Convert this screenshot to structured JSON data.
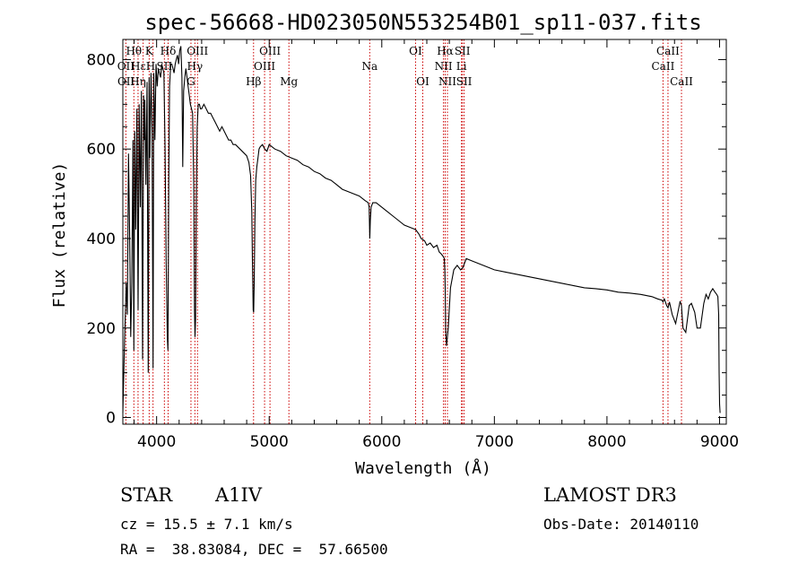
{
  "chart_data": {
    "type": "line",
    "title": "spec-56668-HD023050N553254B01_sp11-037.fits",
    "xlabel": "Wavelength (Å)",
    "ylabel": "Flux (relative)",
    "xlim": [
      3700,
      9060
    ],
    "ylim": [
      -15,
      845
    ],
    "x_ticks": [
      4000,
      5000,
      6000,
      7000,
      8000,
      9000
    ],
    "y_ticks": [
      0,
      200,
      400,
      600,
      800
    ],
    "series": [
      {
        "name": "flux",
        "x": [
          3700,
          3705,
          3715,
          3730,
          3740,
          3750,
          3760,
          3770,
          3780,
          3790,
          3798,
          3805,
          3815,
          3825,
          3835,
          3845,
          3855,
          3865,
          3875,
          3885,
          3890,
          3895,
          3905,
          3915,
          3925,
          3933,
          3940,
          3950,
          3960,
          3968,
          3975,
          3985,
          3995,
          4005,
          4015,
          4025,
          4035,
          4045,
          4055,
          4065,
          4075,
          4085,
          4095,
          4101,
          4108,
          4115,
          4125,
          4135,
          4145,
          4155,
          4165,
          4175,
          4185,
          4195,
          4205,
          4215,
          4225,
          4232,
          4240,
          4250,
          4260,
          4270,
          4280,
          4290,
          4300,
          4310,
          4320,
          4330,
          4336,
          4341,
          4346,
          4352,
          4360,
          4370,
          4380,
          4390,
          4400,
          4420,
          4440,
          4460,
          4480,
          4500,
          4520,
          4540,
          4560,
          4580,
          4600,
          4620,
          4640,
          4660,
          4680,
          4700,
          4720,
          4740,
          4760,
          4780,
          4800,
          4820,
          4835,
          4845,
          4852,
          4858,
          4862,
          4867,
          4873,
          4880,
          4890,
          4900,
          4910,
          4920,
          4940,
          4960,
          4980,
          5000,
          5050,
          5100,
          5150,
          5200,
          5250,
          5300,
          5350,
          5400,
          5450,
          5500,
          5550,
          5600,
          5650,
          5700,
          5750,
          5800,
          5850,
          5880,
          5888,
          5893,
          5898,
          5905,
          5920,
          5950,
          6000,
          6050,
          6100,
          6150,
          6200,
          6250,
          6300,
          6330,
          6350,
          6380,
          6400,
          6430,
          6460,
          6490,
          6510,
          6530,
          6545,
          6555,
          6560,
          6563,
          6567,
          6575,
          6590,
          6610,
          6640,
          6670,
          6700,
          6720,
          6750,
          6800,
          6850,
          6900,
          6950,
          7000,
          7100,
          7200,
          7300,
          7400,
          7500,
          7600,
          7700,
          7800,
          7900,
          8000,
          8100,
          8200,
          8300,
          8400,
          8450,
          8490,
          8498,
          8510,
          8530,
          8542,
          8555,
          8580,
          8610,
          8650,
          8662,
          8675,
          8700,
          8730,
          8750,
          8780,
          8800,
          8830,
          8860,
          8880,
          8900,
          8920,
          8940,
          8960,
          8975,
          8985,
          8992,
          8996,
          9000,
          9005
        ],
        "values": [
          10,
          60,
          170,
          300,
          230,
          590,
          420,
          180,
          300,
          620,
          150,
          640,
          420,
          690,
          240,
          700,
          470,
          730,
          130,
          720,
          620,
          710,
          520,
          750,
          100,
          760,
          580,
          770,
          640,
          110,
          770,
          620,
          790,
          740,
          780,
          770,
          760,
          790,
          780,
          770,
          600,
          350,
          180,
          150,
          520,
          740,
          790,
          790,
          780,
          770,
          790,
          800,
          810,
          790,
          820,
          830,
          760,
          560,
          730,
          760,
          780,
          760,
          740,
          720,
          700,
          690,
          680,
          520,
          240,
          180,
          220,
          480,
          650,
          700,
          700,
          690,
          690,
          700,
          690,
          680,
          680,
          670,
          660,
          650,
          640,
          650,
          640,
          630,
          620,
          620,
          610,
          610,
          605,
          600,
          595,
          590,
          585,
          570,
          540,
          460,
          340,
          240,
          235,
          300,
          440,
          530,
          560,
          580,
          600,
          605,
          610,
          600,
          595,
          610,
          600,
          595,
          585,
          580,
          575,
          565,
          560,
          550,
          545,
          535,
          530,
          520,
          510,
          505,
          500,
          495,
          485,
          480,
          470,
          400,
          440,
          470,
          480,
          480,
          470,
          460,
          450,
          440,
          430,
          425,
          420,
          410,
          400,
          395,
          385,
          390,
          380,
          385,
          370,
          365,
          360,
          355,
          330,
          290,
          200,
          160,
          200,
          290,
          330,
          340,
          330,
          335,
          355,
          350,
          345,
          340,
          335,
          330,
          325,
          320,
          315,
          310,
          305,
          300,
          295,
          290,
          288,
          285,
          280,
          278,
          275,
          270,
          265,
          262,
          258,
          265,
          250,
          245,
          258,
          230,
          210,
          260,
          250,
          200,
          190,
          250,
          255,
          235,
          200,
          200,
          255,
          275,
          265,
          280,
          288,
          280,
          275,
          270,
          230,
          100,
          30,
          10
        ]
      }
    ],
    "annotations": [
      {
        "label": "Hθ",
        "x": 3798,
        "row": 1
      },
      {
        "label": "OII",
        "x": 3727,
        "row": 2
      },
      {
        "label": "OII",
        "x": 3729,
        "row": 3
      },
      {
        "label": "K",
        "x": 3934,
        "row": 1
      },
      {
        "label": "HεH",
        "x": 3880,
        "row": 2
      },
      {
        "label": "Hη",
        "x": 3835,
        "row": 3
      },
      {
        "label": "Hδ",
        "x": 4102,
        "row": 1
      },
      {
        "label": "SII",
        "x": 4069,
        "row": 2
      },
      {
        "label": "OIII",
        "x": 4363,
        "row": 1
      },
      {
        "label": "Hγ",
        "x": 4340,
        "row": 2
      },
      {
        "label": "G",
        "x": 4305,
        "row": 3
      },
      {
        "label": "OIII",
        "x": 5007,
        "row": 1
      },
      {
        "label": "OIII",
        "x": 4959,
        "row": 2
      },
      {
        "label": "Hβ",
        "x": 4861,
        "row": 3
      },
      {
        "label": "Mg",
        "x": 5175,
        "row": 3
      },
      {
        "label": "Na",
        "x": 5893,
        "row": 2
      },
      {
        "label": "OI",
        "x": 6300,
        "row": 1
      },
      {
        "label": "OI",
        "x": 6364,
        "row": 3
      },
      {
        "label": "Hα",
        "x": 6563,
        "row": 1
      },
      {
        "label": "SII",
        "x": 6716,
        "row": 1
      },
      {
        "label": "NII",
        "x": 6548,
        "row": 2
      },
      {
        "label": "Li",
        "x": 6708,
        "row": 2
      },
      {
        "label": "NII",
        "x": 6583,
        "row": 3
      },
      {
        "label": "SII",
        "x": 6731,
        "row": 3
      },
      {
        "label": "CaII",
        "x": 8542,
        "row": 1
      },
      {
        "label": "CaII",
        "x": 8498,
        "row": 2
      },
      {
        "label": "CaII",
        "x": 8662,
        "row": 3
      }
    ],
    "marker_lines": [
      3727,
      3798,
      3835,
      3880,
      3934,
      3968,
      4069,
      4102,
      4305,
      4340,
      4363,
      4861,
      4959,
      5007,
      5175,
      5893,
      6300,
      6364,
      6548,
      6563,
      6583,
      6708,
      6716,
      6731,
      8498,
      8542,
      8662
    ],
    "marker_color": "#cc0000"
  },
  "info": {
    "object_class": "STAR",
    "subclass": "A1IV",
    "cz": "cz = 15.5 ± 7.1 km/s",
    "coords": "RA =  38.83084, DEC =  57.66500",
    "survey": "LAMOST DR3",
    "obs_date": "Obs-Date: 20140110"
  }
}
